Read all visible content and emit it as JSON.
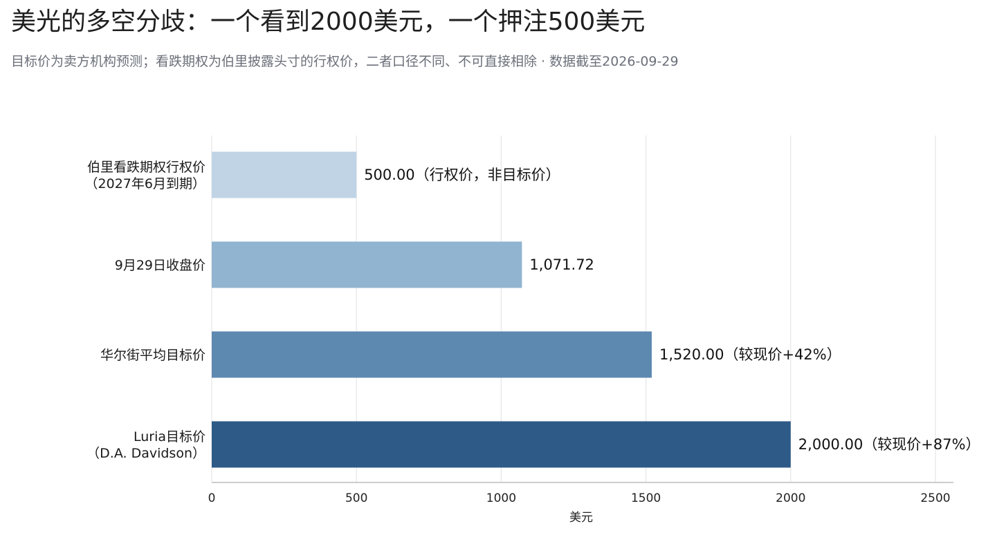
{
  "header": {
    "title": "美光的多空分歧：一个看到2000美元，一个押注500美元",
    "subtitle": "目标价为卖方机构预测；看跌期权为伯里披露头寸的行权价，二者口径不同、不可直接相除 · 数据截至2026-09-29"
  },
  "chart_data": {
    "type": "bar",
    "orientation": "horizontal",
    "title": "美光的多空分歧：一个看到2000美元，一个押注500美元",
    "subtitle": "目标价为卖方机构预测；看跌期权为伯里披露头寸的行权价，二者口径不同、不可直接相除 · 数据截至2026-09-29",
    "xlabel": "美元",
    "ylabel": "",
    "xlim": [
      0,
      2560
    ],
    "xticks": [
      0,
      500,
      1000,
      1500,
      2000,
      2500
    ],
    "grid": true,
    "legend": "none",
    "categories": [
      [
        "伯里看跌期权行权价",
        "（2027年6月到期）"
      ],
      [
        "9月29日收盘价"
      ],
      [
        "华尔街平均目标价"
      ],
      [
        "Luria目标价",
        "（D.A. Davidson）"
      ]
    ],
    "values": [
      500.0,
      1071.72,
      1520.0,
      2000.0
    ],
    "data_labels": [
      "500.00（行权价，非目标价）",
      "1,071.72",
      "1,520.00（较现价+42%）",
      "2,000.00（较现价+87%）"
    ],
    "colors": [
      "#c0d4e5",
      "#91b4d0",
      "#5d88b0",
      "#2e5a87"
    ],
    "grid_color": "#e6e6e6",
    "axis_color": "#cccccc"
  }
}
